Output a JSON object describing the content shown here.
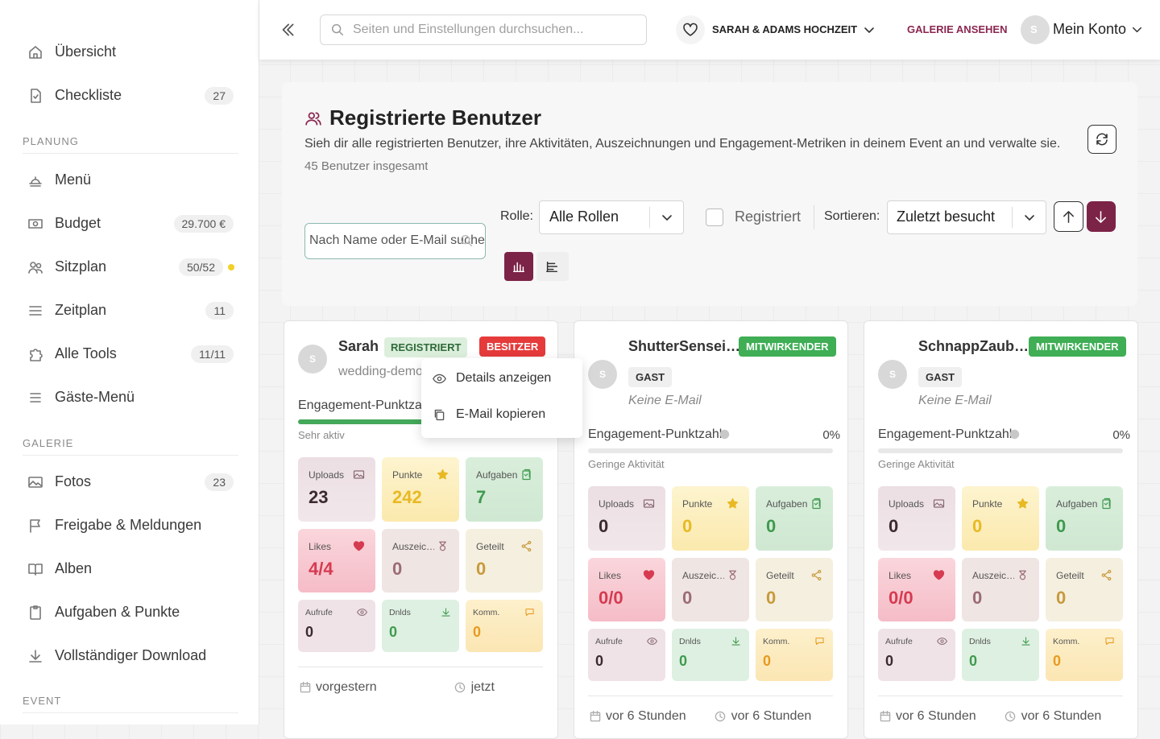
{
  "sidebar": {
    "top": [
      {
        "label": "Übersicht"
      },
      {
        "label": "Checkliste",
        "badge": "27"
      }
    ],
    "sections": [
      {
        "heading": "PLANUNG",
        "items": [
          {
            "label": "Menü"
          },
          {
            "label": "Budget",
            "badge": "29.700 €"
          },
          {
            "label": "Sitzplan",
            "badge": "50/52"
          },
          {
            "label": "Zeitplan",
            "badge": "11"
          },
          {
            "label": "Alle Tools",
            "badge": "11/11"
          },
          {
            "label": "Gäste-Menü"
          }
        ]
      },
      {
        "heading": "GALERIE",
        "items": [
          {
            "label": "Fotos",
            "badge": "23"
          },
          {
            "label": "Freigabe & Meldungen"
          },
          {
            "label": "Alben"
          },
          {
            "label": "Aufgaben & Punkte"
          },
          {
            "label": "Vollständiger Download"
          }
        ]
      },
      {
        "heading": "EVENT",
        "items": []
      }
    ]
  },
  "topbar": {
    "search": "Seiten und Einstellungen durchsuchen...",
    "event": "SARAH & ADAMS HOCHZEIT",
    "gallery": "GALERIE ANSEHEN",
    "avatar": "S",
    "account": "Mein Konto"
  },
  "panel": {
    "title": "Registrierte Benutzer",
    "description": "Sieh dir alle registrierten Benutzer, ihre Aktivitäten, Auszeichnungen und Engagement-Metriken in deinem Event an und verwalte sie.",
    "total": "45 Benutzer insgesamt",
    "search": "Nach Name oder E-Mail suchen",
    "role_label": "Rolle:",
    "role_value": "Alle Rollen",
    "registered": "Registriert",
    "sort_label": "Sortieren:",
    "sort_value": "Zuletzt besucht"
  },
  "cards": [
    {
      "avatar": "S",
      "name": "Sarah",
      "status": "REGISTRIERT",
      "role": "BESITZER",
      "email": "wedding-demo",
      "score_label": "Engagement-Punktzahl",
      "activity": "Sehr aktiv",
      "stats": [
        {
          "label": "Uploads",
          "value": "23"
        },
        {
          "label": "Punkte",
          "value": "242"
        },
        {
          "label": "Aufgaben",
          "value": "7"
        },
        {
          "label": "Likes",
          "value": "4/4"
        },
        {
          "label": "Auszeic…",
          "value": "0"
        },
        {
          "label": "Geteilt",
          "value": "0"
        },
        {
          "label": "Aufrufe",
          "value": "0"
        },
        {
          "label": "Dnlds",
          "value": "0"
        },
        {
          "label": "Komm.",
          "value": "0"
        }
      ],
      "last_seen": "vorgestern",
      "last_active": "jetzt"
    },
    {
      "avatar": "S",
      "name": "ShutterSensei…",
      "role": "MITWIRKENDER",
      "group": "GAST",
      "email": "Keine E-Mail",
      "score_label": "Engagement-Punktzahl",
      "percent": "0%",
      "activity": "Geringe Aktivität",
      "stats": [
        {
          "label": "Uploads",
          "value": "0"
        },
        {
          "label": "Punkte",
          "value": "0"
        },
        {
          "label": "Aufgaben",
          "value": "0"
        },
        {
          "label": "Likes",
          "value": "0/0"
        },
        {
          "label": "Auszeic…",
          "value": "0"
        },
        {
          "label": "Geteilt",
          "value": "0"
        },
        {
          "label": "Aufrufe",
          "value": "0"
        },
        {
          "label": "Dnlds",
          "value": "0"
        },
        {
          "label": "Komm.",
          "value": "0"
        }
      ],
      "last_seen": "vor 6 Stunden",
      "last_active": "vor 6 Stunden"
    },
    {
      "avatar": "S",
      "name": "SchnappZaub…",
      "role": "MITWIRKENDER",
      "group": "GAST",
      "email": "Keine E-Mail",
      "score_label": "Engagement-Punktzahl",
      "percent": "0%",
      "activity": "Geringe Aktivität",
      "stats": [
        {
          "label": "Uploads",
          "value": "0"
        },
        {
          "label": "Punkte",
          "value": "0"
        },
        {
          "label": "Aufgaben",
          "value": "0"
        },
        {
          "label": "Likes",
          "value": "0/0"
        },
        {
          "label": "Auszeic…",
          "value": "0"
        },
        {
          "label": "Geteilt",
          "value": "0"
        },
        {
          "label": "Aufrufe",
          "value": "0"
        },
        {
          "label": "Dnlds",
          "value": "0"
        },
        {
          "label": "Komm.",
          "value": "0"
        }
      ],
      "last_seen": "vor 6 Stunden",
      "last_active": "vor 6 Stunden"
    }
  ],
  "menu": {
    "items": [
      "Details anzeigen",
      "E-Mail kopieren"
    ]
  }
}
